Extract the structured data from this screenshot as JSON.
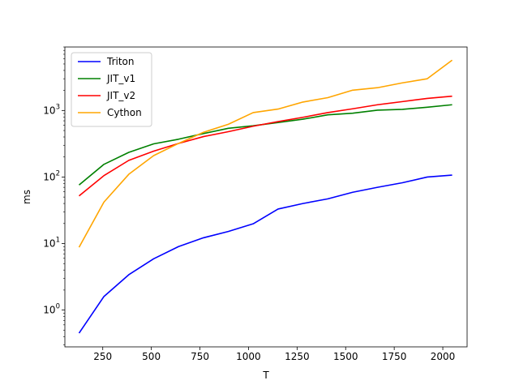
{
  "chart_data": {
    "type": "line",
    "title": "",
    "xlabel": "T",
    "ylabel": "ms",
    "yscale": "log",
    "xlim": [
      55,
      2125
    ],
    "ylim": [
      0.28,
      9000
    ],
    "grid": false,
    "legend_position": "upper-left",
    "x_ticks": [
      {
        "value": 250,
        "label": "250"
      },
      {
        "value": 500,
        "label": "500"
      },
      {
        "value": 750,
        "label": "750"
      },
      {
        "value": 1000,
        "label": "1000"
      },
      {
        "value": 1250,
        "label": "1250"
      },
      {
        "value": 1500,
        "label": "1500"
      },
      {
        "value": 1750,
        "label": "1750"
      },
      {
        "value": 2000,
        "label": "2000"
      }
    ],
    "y_ticks": [
      {
        "value": 1,
        "base": "10",
        "exp": "0"
      },
      {
        "value": 10,
        "base": "10",
        "exp": "1"
      },
      {
        "value": 100,
        "base": "10",
        "exp": "2"
      },
      {
        "value": 1000,
        "base": "10",
        "exp": "3"
      }
    ],
    "x": [
      128,
      256,
      384,
      512,
      640,
      768,
      896,
      1024,
      1152,
      1280,
      1408,
      1536,
      1664,
      1792,
      1920,
      2048
    ],
    "series": [
      {
        "name": "Triton",
        "color": "#0000ff",
        "values": [
          0.45,
          1.6,
          3.4,
          5.9,
          9.0,
          12.2,
          15.2,
          19.8,
          33,
          40,
          47,
          59,
          70,
          82,
          100,
          107
        ]
      },
      {
        "name": "JIT_v1",
        "color": "#008000",
        "values": [
          76,
          155,
          235,
          315,
          370,
          450,
          540,
          590,
          660,
          740,
          860,
          910,
          1010,
          1040,
          1120,
          1220
        ]
      },
      {
        "name": "JIT_v2",
        "color": "#ff0000",
        "values": [
          52,
          105,
          178,
          245,
          320,
          405,
          480,
          580,
          680,
          790,
          930,
          1060,
          1220,
          1360,
          1520,
          1640
        ]
      },
      {
        "name": "Cython",
        "color": "#ffa500",
        "values": [
          8.8,
          42,
          110,
          210,
          320,
          470,
          620,
          930,
          1050,
          1340,
          1560,
          2020,
          2200,
          2600,
          3000,
          5700
        ]
      }
    ]
  }
}
